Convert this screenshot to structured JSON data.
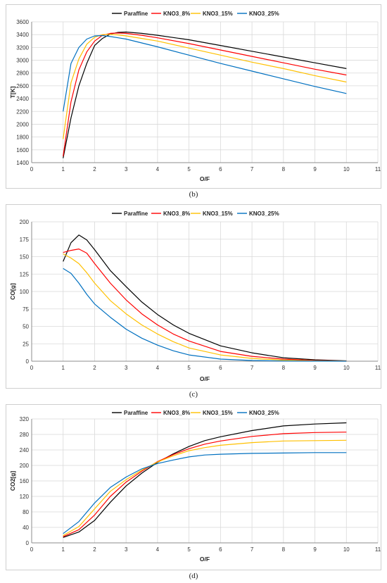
{
  "legend": [
    {
      "name": "Paraffine",
      "color": "#000000"
    },
    {
      "name": "KNO3_8%",
      "color": "#ff0000"
    },
    {
      "name": "KNO3_15%",
      "color": "#ffc000"
    },
    {
      "name": "KNO3_25%",
      "color": "#0070c0"
    }
  ],
  "chart_data": [
    {
      "type": "line",
      "caption": "(b)",
      "title": "",
      "xlabel": "O/F",
      "ylabel": "T[K]",
      "xlim": [
        0,
        11
      ],
      "ylim": [
        1400,
        3600
      ],
      "xticks": [
        0,
        1,
        2,
        3,
        4,
        5,
        6,
        7,
        8,
        9,
        10,
        11
      ],
      "yticks": [
        1400,
        1600,
        1800,
        2000,
        2200,
        2400,
        2600,
        2800,
        3000,
        3200,
        3400,
        3600
      ],
      "grid": true,
      "legend_position": "top",
      "series": [
        {
          "name": "Paraffine",
          "color": "#000000",
          "x": [
            1,
            1.25,
            1.5,
            1.75,
            2,
            2.25,
            2.5,
            2.75,
            3,
            3.5,
            4,
            5,
            6,
            7,
            8,
            9,
            10
          ],
          "y": [
            1470,
            2100,
            2600,
            2950,
            3230,
            3340,
            3410,
            3435,
            3440,
            3420,
            3390,
            3320,
            3230,
            3140,
            3050,
            2960,
            2870
          ]
        },
        {
          "name": "KNO3_8%",
          "color": "#ff0000",
          "x": [
            1,
            1.25,
            1.5,
            1.75,
            2,
            2.25,
            2.5,
            2.75,
            3,
            3.5,
            4,
            5,
            6,
            7,
            8,
            9,
            10
          ],
          "y": [
            1500,
            2350,
            2850,
            3130,
            3300,
            3390,
            3420,
            3425,
            3420,
            3390,
            3350,
            3260,
            3160,
            3060,
            2960,
            2860,
            2770
          ]
        },
        {
          "name": "KNO3_15%",
          "color": "#ffc000",
          "x": [
            1,
            1.25,
            1.5,
            1.75,
            2,
            2.25,
            2.5,
            2.75,
            3,
            3.5,
            4,
            5,
            6,
            7,
            8,
            9,
            10
          ],
          "y": [
            1770,
            2650,
            3020,
            3250,
            3360,
            3400,
            3405,
            3395,
            3380,
            3340,
            3300,
            3190,
            3080,
            2970,
            2870,
            2760,
            2660
          ]
        },
        {
          "name": "KNO3_25%",
          "color": "#0070c0",
          "x": [
            1,
            1.25,
            1.5,
            1.75,
            2,
            2.25,
            2.5,
            2.75,
            3,
            3.5,
            4,
            5,
            6,
            7,
            8,
            9,
            10
          ],
          "y": [
            2200,
            2950,
            3200,
            3330,
            3380,
            3385,
            3370,
            3350,
            3330,
            3270,
            3210,
            3080,
            2950,
            2830,
            2710,
            2590,
            2480
          ]
        }
      ]
    },
    {
      "type": "line",
      "caption": "(c)",
      "title": "",
      "xlabel": "O/F",
      "ylabel": "CO[g]",
      "xlim": [
        0,
        11
      ],
      "ylim": [
        0,
        200
      ],
      "xticks": [
        0,
        1,
        2,
        3,
        4,
        5,
        6,
        7,
        8,
        9,
        10,
        11
      ],
      "yticks": [
        0,
        25,
        50,
        75,
        100,
        125,
        150,
        175,
        200
      ],
      "grid": true,
      "legend_position": "top",
      "series": [
        {
          "name": "Paraffine",
          "color": "#000000",
          "x": [
            1,
            1.25,
            1.5,
            1.75,
            2,
            2.5,
            3,
            3.5,
            4,
            4.5,
            5,
            6,
            7,
            8,
            9,
            10
          ],
          "y": [
            143,
            170,
            181,
            174,
            160,
            130,
            107,
            85,
            67,
            52,
            40,
            22,
            12,
            5,
            2,
            0.5
          ]
        },
        {
          "name": "KNO3_8%",
          "color": "#ff0000",
          "x": [
            1,
            1.25,
            1.5,
            1.75,
            2,
            2.5,
            3,
            3.5,
            4,
            4.5,
            5,
            6,
            7,
            8,
            9,
            10
          ],
          "y": [
            156,
            159,
            161,
            155,
            140,
            112,
            88,
            68,
            52,
            39,
            29,
            14,
            7,
            3,
            1,
            0.3
          ]
        },
        {
          "name": "KNO3_15%",
          "color": "#ffc000",
          "x": [
            1,
            1.25,
            1.5,
            1.75,
            2,
            2.5,
            3,
            3.5,
            4,
            4.5,
            5,
            6,
            7,
            8,
            9,
            10
          ],
          "y": [
            154,
            148,
            140,
            127,
            112,
            87,
            68,
            52,
            39,
            28,
            19,
            9,
            4,
            1.5,
            0.5,
            0.2
          ]
        },
        {
          "name": "KNO3_25%",
          "color": "#0070c0",
          "x": [
            1,
            1.25,
            1.5,
            1.75,
            2,
            2.5,
            3,
            3.5,
            4,
            4.5,
            5,
            6,
            7,
            8,
            9,
            10
          ],
          "y": [
            133,
            126,
            112,
            96,
            82,
            63,
            46,
            33,
            23,
            15,
            9,
            3,
            1,
            0.3,
            0.1,
            0
          ]
        }
      ]
    },
    {
      "type": "line",
      "caption": "(d)",
      "title": "",
      "xlabel": "O/F",
      "ylabel": "CO2[g]",
      "xlim": [
        0,
        11
      ],
      "ylim": [
        0,
        320
      ],
      "xticks": [
        0,
        1,
        2,
        3,
        4,
        5,
        6,
        7,
        8,
        9,
        10,
        11
      ],
      "yticks": [
        0,
        40,
        80,
        120,
        160,
        200,
        240,
        280,
        320
      ],
      "grid": true,
      "legend_position": "top",
      "series": [
        {
          "name": "Paraffine",
          "color": "#000000",
          "x": [
            1,
            1.5,
            2,
            2.5,
            3,
            3.5,
            4,
            4.5,
            5,
            5.5,
            6,
            7,
            8,
            9,
            10
          ],
          "y": [
            14,
            28,
            58,
            105,
            147,
            180,
            208,
            230,
            249,
            264,
            274,
            290,
            302,
            307,
            310
          ]
        },
        {
          "name": "KNO3_8%",
          "color": "#ff0000",
          "x": [
            1,
            1.5,
            2,
            2.5,
            3,
            3.5,
            4,
            4.5,
            5,
            5.5,
            6,
            7,
            8,
            9,
            10
          ],
          "y": [
            16,
            34,
            72,
            120,
            157,
            185,
            210,
            228,
            243,
            255,
            263,
            275,
            282,
            285,
            286
          ]
        },
        {
          "name": "KNO3_15%",
          "color": "#ffc000",
          "x": [
            1,
            1.5,
            2,
            2.5,
            3,
            3.5,
            4,
            4.5,
            5,
            5.5,
            6,
            7,
            8,
            9,
            10
          ],
          "y": [
            19,
            42,
            88,
            133,
            163,
            188,
            209,
            225,
            238,
            246,
            252,
            259,
            263,
            264,
            265
          ]
        },
        {
          "name": "KNO3_25%",
          "color": "#0070c0",
          "x": [
            1,
            1.5,
            2,
            2.5,
            3,
            3.5,
            4,
            4.5,
            5,
            5.5,
            6,
            7,
            8,
            9,
            10
          ],
          "y": [
            24,
            55,
            103,
            143,
            170,
            191,
            205,
            214,
            222,
            227,
            229,
            231,
            232,
            233,
            233
          ]
        }
      ]
    }
  ]
}
